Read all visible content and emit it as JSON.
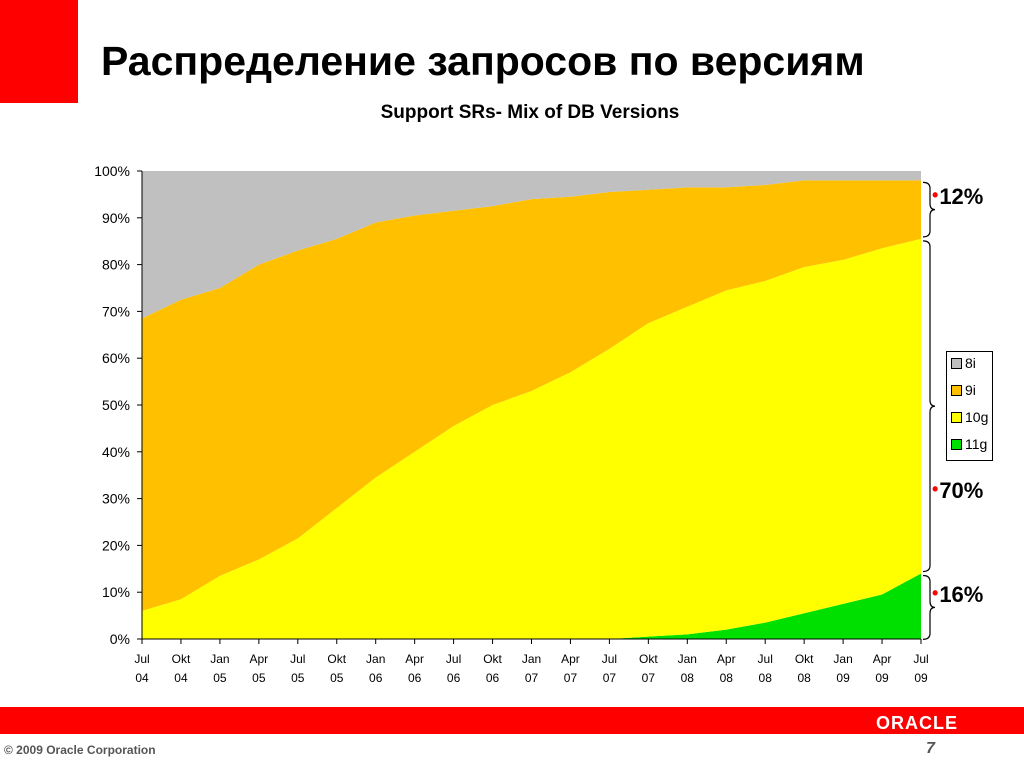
{
  "slide": {
    "title": "Распределение запросов по версиям",
    "copyright": "© 2009 Oracle Corporation",
    "page_number": "7",
    "logo_text": "ORACLE"
  },
  "callouts": {
    "top": "12%",
    "middle": "70%",
    "bottom": "16%"
  },
  "colors": {
    "accent": "#ff0000",
    "8i": "#c0c0c0",
    "9i": "#ffc000",
    "10g": "#ffff00",
    "11g": "#00e000"
  },
  "chart_data": {
    "type": "area",
    "stacked": true,
    "title": "Support SRs- Mix of DB Versions",
    "ylim": [
      0,
      100
    ],
    "y_ticks": [
      "0%",
      "10%",
      "20%",
      "30%",
      "40%",
      "50%",
      "60%",
      "70%",
      "80%",
      "90%",
      "100%"
    ],
    "x_ticks": [
      [
        "Jul",
        "04"
      ],
      [
        "Okt",
        "04"
      ],
      [
        "Jan",
        "05"
      ],
      [
        "Apr",
        "05"
      ],
      [
        "Jul",
        "05"
      ],
      [
        "Okt",
        "05"
      ],
      [
        "Jan",
        "06"
      ],
      [
        "Apr",
        "06"
      ],
      [
        "Jul",
        "06"
      ],
      [
        "Okt",
        "06"
      ],
      [
        "Jan",
        "07"
      ],
      [
        "Apr",
        "07"
      ],
      [
        "Jul",
        "07"
      ],
      [
        "Okt",
        "07"
      ],
      [
        "Jan",
        "08"
      ],
      [
        "Apr",
        "08"
      ],
      [
        "Jul",
        "08"
      ],
      [
        "Okt",
        "08"
      ],
      [
        "Jan",
        "09"
      ],
      [
        "Apr",
        "09"
      ],
      [
        "Jul",
        "09"
      ]
    ],
    "x": [
      "Jul 04",
      "Okt 04",
      "Jan 05",
      "Apr 05",
      "Jul 05",
      "Okt 05",
      "Jan 06",
      "Apr 06",
      "Jul 06",
      "Okt 06",
      "Jan 07",
      "Apr 07",
      "Jul 07",
      "Okt 07",
      "Jan 08",
      "Apr 08",
      "Jul 08",
      "Okt 08",
      "Jan 09",
      "Apr 09",
      "Jul 09"
    ],
    "series": [
      {
        "name": "11g",
        "values": [
          0,
          0,
          0,
          0,
          0,
          0,
          0,
          0,
          0,
          0,
          0,
          0,
          0,
          0.5,
          1,
          2,
          3.5,
          5.5,
          7.5,
          9.5,
          14
        ]
      },
      {
        "name": "10g",
        "values": [
          6,
          8.5,
          13.5,
          17,
          21.5,
          28,
          34.5,
          40,
          45.5,
          50,
          53,
          57,
          62,
          67,
          70,
          72.5,
          73,
          74,
          73.5,
          74,
          71.5
        ]
      },
      {
        "name": "9i",
        "values": [
          62.5,
          64,
          61.5,
          63,
          61.5,
          57.5,
          54.5,
          50.5,
          46,
          42.5,
          41,
          37.5,
          33.5,
          28.5,
          25.5,
          22,
          20.5,
          18.5,
          17,
          14.5,
          12.5
        ]
      },
      {
        "name": "8i",
        "values": [
          31.5,
          27.5,
          25,
          20,
          17,
          14.5,
          11,
          9.5,
          8.5,
          7.5,
          6,
          5.5,
          4.5,
          4,
          3.5,
          3.5,
          3,
          2,
          2,
          2,
          2
        ]
      }
    ],
    "legend": {
      "position": "right",
      "order": [
        "8i",
        "9i",
        "10g",
        "11g"
      ]
    }
  }
}
